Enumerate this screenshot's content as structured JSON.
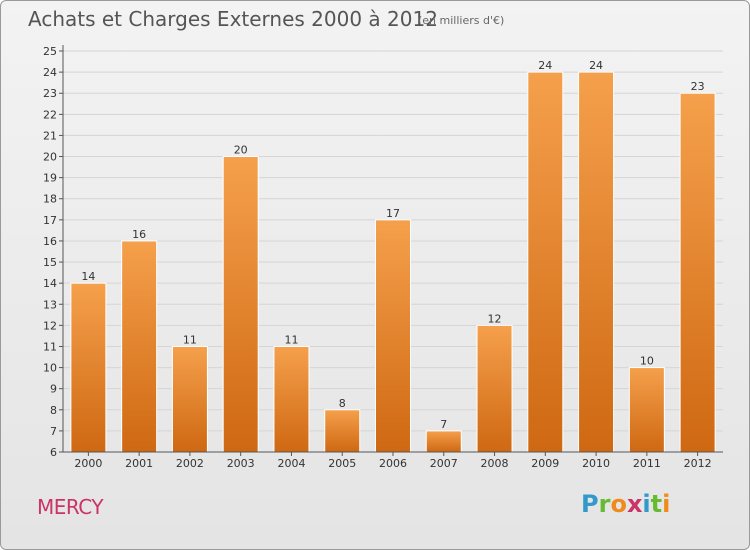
{
  "header": {
    "title": "Achats et Charges Externes 2000 à 2012",
    "unit_note": "(en milliers d'€)"
  },
  "footer": {
    "commune": "MERCY",
    "logo_text": "Proxiti",
    "logo_colors": [
      "#3399cc",
      "#66bb33",
      "#f08a1c",
      "#cc3366",
      "#3399cc",
      "#66bb33",
      "#f08a1c"
    ]
  },
  "colors": {
    "bar_top": "#f5a04c",
    "bar_bottom": "#cf6812",
    "bar_edge": "#ffffff",
    "axis": "#555555",
    "grid": "#d5d5d5",
    "text": "#333333"
  },
  "chart_data": {
    "type": "bar",
    "title": "Achats et Charges Externes 2000 à 2012",
    "subtitle": "(en milliers d'€)",
    "categories": [
      "2000",
      "2001",
      "2002",
      "2003",
      "2004",
      "2005",
      "2006",
      "2007",
      "2008",
      "2009",
      "2010",
      "2011",
      "2012"
    ],
    "values": [
      14,
      16,
      11,
      20,
      11,
      8,
      17,
      7,
      12,
      24,
      24,
      10,
      23
    ],
    "value_labels": [
      "14",
      "16",
      "11",
      "20",
      "11",
      "8",
      "17",
      "7",
      "12",
      "24",
      "24",
      "10",
      "23"
    ],
    "ylim": [
      6,
      25
    ],
    "yticks": [
      6,
      7,
      8,
      9,
      10,
      11,
      12,
      13,
      14,
      15,
      16,
      17,
      18,
      19,
      20,
      21,
      22,
      23,
      24,
      25
    ],
    "grid": true,
    "xlabel": "",
    "ylabel": ""
  }
}
